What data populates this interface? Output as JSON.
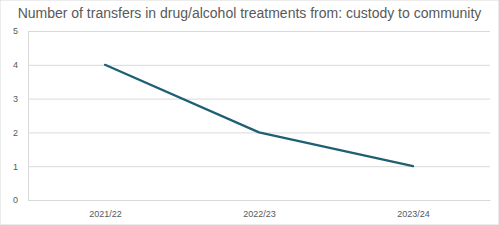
{
  "chart_data": {
    "type": "line",
    "title": "Number of transfers in drug/alcohol treatments from: custody to community",
    "categories": [
      "2021/22",
      "2022/23",
      "2023/24"
    ],
    "values": [
      4,
      2,
      1
    ],
    "color": "#1f5f74",
    "ylim": [
      0,
      5
    ],
    "yticks": [
      0,
      1,
      2,
      3,
      4,
      5
    ],
    "grid": true
  }
}
